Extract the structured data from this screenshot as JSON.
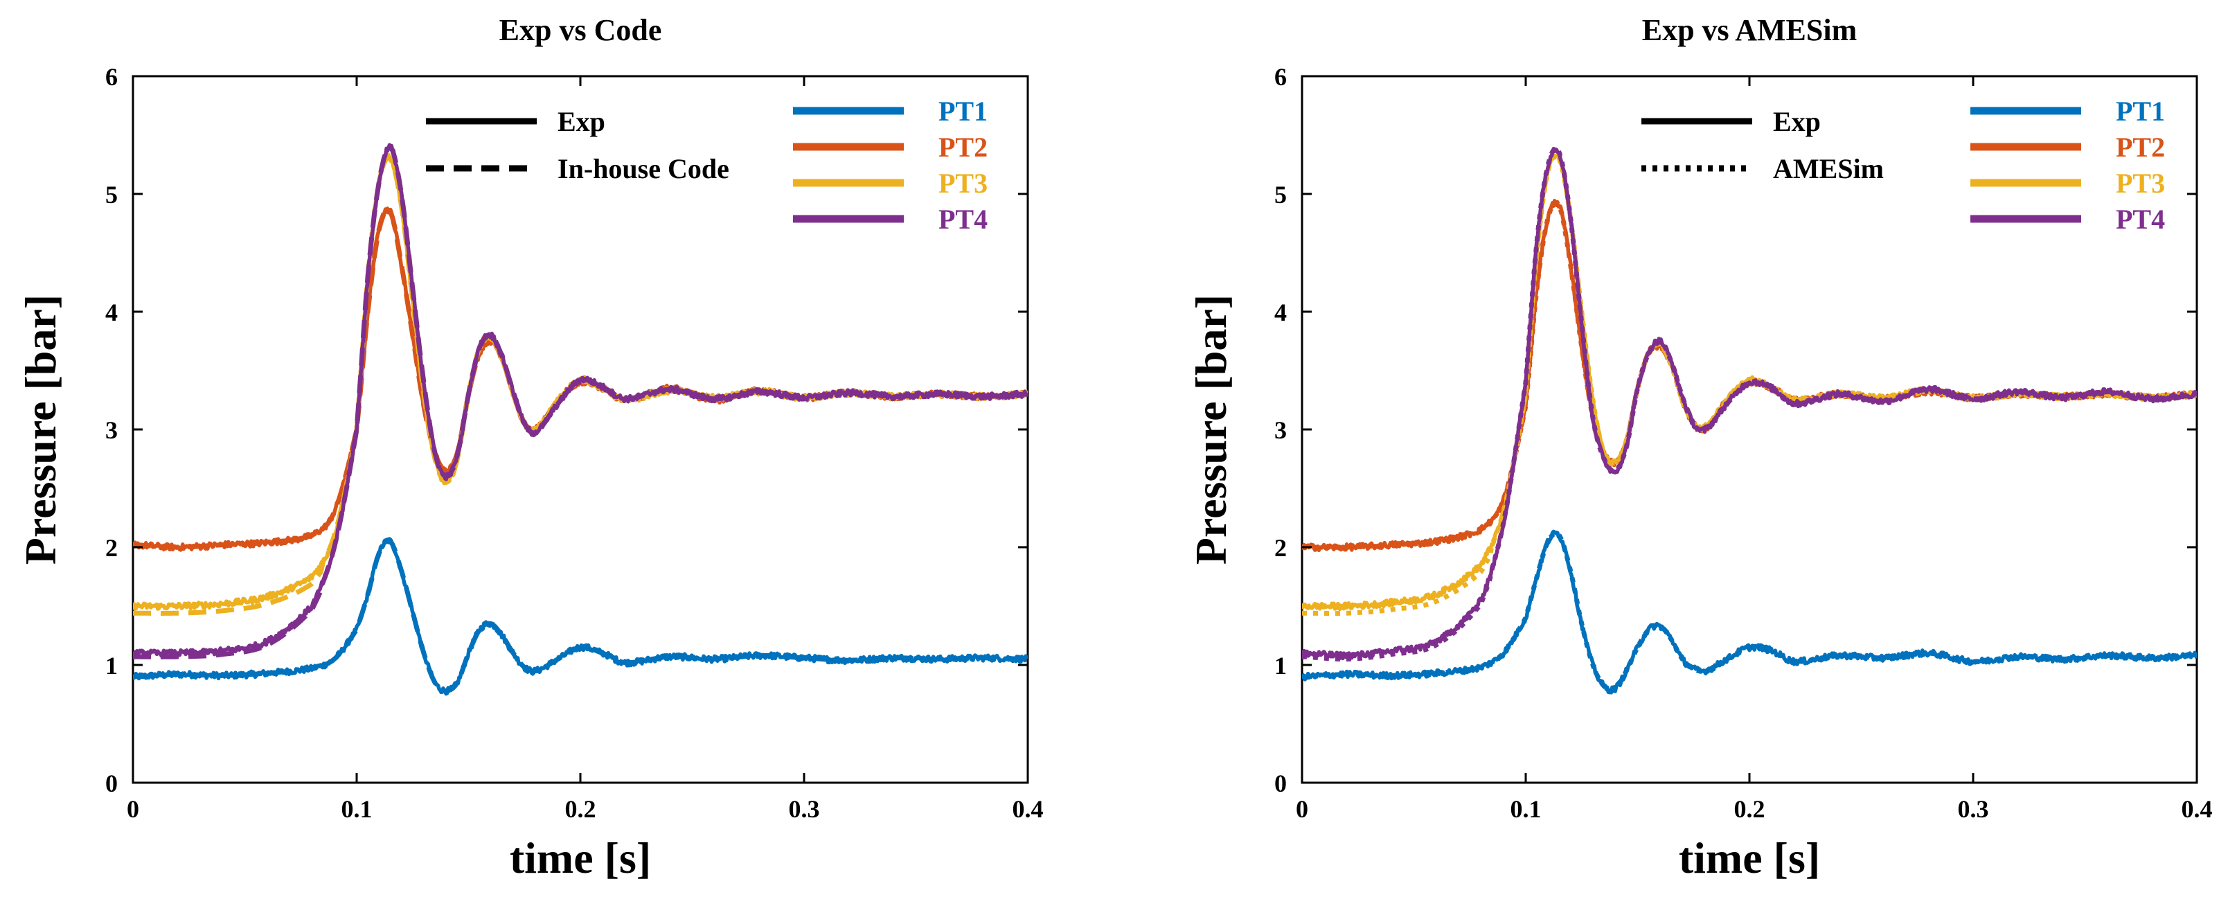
{
  "colors": {
    "PT1": "#0072BD",
    "PT2": "#D95319",
    "PT3": "#EDB120",
    "PT4": "#7E2F8E",
    "axis": "#000000"
  },
  "chart_data": [
    {
      "type": "line",
      "title": "Exp  vs  Code",
      "xlabel": "time [s]",
      "ylabel": "Pressure [bar]",
      "xlim": [
        0,
        0.4
      ],
      "ylim": [
        0,
        6
      ],
      "xticks": [
        "0",
        "0.1",
        "0.2",
        "0.3",
        "0.4"
      ],
      "yticks": [
        "0",
        "1",
        "2",
        "3",
        "4",
        "5",
        "6"
      ],
      "grid": false,
      "style_legend": [
        {
          "label": "Exp",
          "dash": "solid"
        },
        {
          "label": "In-house Code",
          "dash": "dashed"
        }
      ],
      "series": [
        {
          "name": "PT1",
          "x": [
            0,
            0.02,
            0.04,
            0.06,
            0.08,
            0.09,
            0.1,
            0.105,
            0.11,
            0.115,
            0.12,
            0.125,
            0.13,
            0.135,
            0.14,
            0.145,
            0.15,
            0.155,
            0.16,
            0.165,
            0.17,
            0.175,
            0.18,
            0.19,
            0.2,
            0.21,
            0.22,
            0.24,
            0.26,
            0.28,
            0.3,
            0.32,
            0.34,
            0.36,
            0.38,
            0.4
          ],
          "y": [
            0.9,
            0.92,
            0.91,
            0.93,
            0.97,
            1.05,
            1.3,
            1.6,
            1.95,
            2.05,
            1.8,
            1.45,
            1.1,
            0.85,
            0.78,
            0.85,
            1.1,
            1.3,
            1.35,
            1.25,
            1.1,
            0.98,
            0.95,
            1.05,
            1.15,
            1.1,
            1.02,
            1.07,
            1.05,
            1.08,
            1.06,
            1.04,
            1.06,
            1.05,
            1.06,
            1.05
          ]
        },
        {
          "name": "PT2",
          "x": [
            0,
            0.02,
            0.04,
            0.06,
            0.08,
            0.09,
            0.1,
            0.105,
            0.11,
            0.115,
            0.12,
            0.125,
            0.13,
            0.135,
            0.14,
            0.145,
            0.15,
            0.155,
            0.16,
            0.165,
            0.17,
            0.175,
            0.18,
            0.19,
            0.2,
            0.21,
            0.22,
            0.24,
            0.26,
            0.28,
            0.3,
            0.32,
            0.34,
            0.36,
            0.38,
            0.4
          ],
          "y": [
            2.02,
            2.0,
            2.02,
            2.04,
            2.1,
            2.3,
            3.0,
            4.0,
            4.7,
            4.85,
            4.4,
            3.8,
            3.2,
            2.8,
            2.65,
            2.8,
            3.3,
            3.65,
            3.75,
            3.6,
            3.3,
            3.05,
            3.0,
            3.25,
            3.4,
            3.35,
            3.25,
            3.35,
            3.25,
            3.33,
            3.27,
            3.31,
            3.28,
            3.3,
            3.28,
            3.3
          ]
        },
        {
          "name": "PT3",
          "x": [
            0,
            0.02,
            0.04,
            0.06,
            0.08,
            0.09,
            0.1,
            0.105,
            0.11,
            0.115,
            0.12,
            0.125,
            0.13,
            0.135,
            0.14,
            0.145,
            0.15,
            0.155,
            0.16,
            0.165,
            0.17,
            0.175,
            0.18,
            0.19,
            0.2,
            0.21,
            0.22,
            0.24,
            0.26,
            0.28,
            0.3,
            0.32,
            0.34,
            0.36,
            0.38,
            0.4
          ],
          "y": [
            1.5,
            1.5,
            1.52,
            1.58,
            1.75,
            2.1,
            3.0,
            4.3,
            5.1,
            5.3,
            4.9,
            4.1,
            3.3,
            2.75,
            2.55,
            2.75,
            3.3,
            3.7,
            3.78,
            3.6,
            3.3,
            3.05,
            3.0,
            3.25,
            3.42,
            3.35,
            3.25,
            3.33,
            3.27,
            3.32,
            3.27,
            3.31,
            3.28,
            3.3,
            3.28,
            3.3
          ]
        },
        {
          "name": "PT4",
          "x": [
            0,
            0.02,
            0.04,
            0.06,
            0.08,
            0.09,
            0.1,
            0.105,
            0.11,
            0.115,
            0.12,
            0.125,
            0.13,
            0.135,
            0.14,
            0.145,
            0.15,
            0.155,
            0.16,
            0.165,
            0.17,
            0.175,
            0.18,
            0.19,
            0.2,
            0.21,
            0.22,
            0.24,
            0.26,
            0.28,
            0.3,
            0.32,
            0.34,
            0.36,
            0.38,
            0.4
          ],
          "y": [
            1.1,
            1.1,
            1.12,
            1.2,
            1.5,
            2.0,
            3.0,
            4.3,
            5.1,
            5.4,
            5.0,
            4.2,
            3.4,
            2.8,
            2.6,
            2.78,
            3.3,
            3.7,
            3.8,
            3.62,
            3.32,
            3.05,
            2.98,
            3.22,
            3.42,
            3.36,
            3.26,
            3.34,
            3.26,
            3.32,
            3.27,
            3.31,
            3.28,
            3.3,
            3.28,
            3.3
          ]
        }
      ]
    },
    {
      "type": "line",
      "title": "Exp  vs  AMESim",
      "xlabel": "time [s]",
      "ylabel": "Pressure [bar]",
      "xlim": [
        0,
        0.4
      ],
      "ylim": [
        0,
        6
      ],
      "xticks": [
        "0",
        "0.1",
        "0.2",
        "0.3",
        "0.4"
      ],
      "yticks": [
        "0",
        "1",
        "2",
        "3",
        "4",
        "5",
        "6"
      ],
      "grid": false,
      "style_legend": [
        {
          "label": "Exp",
          "dash": "solid"
        },
        {
          "label": "AMESim",
          "dash": "dotted"
        }
      ],
      "series": [
        {
          "name": "PT1",
          "x": [
            0,
            0.02,
            0.04,
            0.06,
            0.08,
            0.09,
            0.1,
            0.105,
            0.11,
            0.115,
            0.12,
            0.125,
            0.13,
            0.135,
            0.14,
            0.145,
            0.15,
            0.155,
            0.16,
            0.165,
            0.17,
            0.175,
            0.18,
            0.19,
            0.2,
            0.21,
            0.22,
            0.24,
            0.26,
            0.28,
            0.3,
            0.32,
            0.34,
            0.36,
            0.38,
            0.4
          ],
          "y": [
            0.9,
            0.92,
            0.91,
            0.93,
            0.98,
            1.1,
            1.4,
            1.75,
            2.05,
            2.1,
            1.8,
            1.35,
            1.0,
            0.82,
            0.8,
            0.95,
            1.15,
            1.3,
            1.33,
            1.22,
            1.05,
            0.97,
            0.95,
            1.05,
            1.15,
            1.12,
            1.03,
            1.08,
            1.06,
            1.1,
            1.03,
            1.07,
            1.05,
            1.08,
            1.06,
            1.08
          ]
        },
        {
          "name": "PT2",
          "x": [
            0,
            0.02,
            0.04,
            0.06,
            0.08,
            0.09,
            0.1,
            0.105,
            0.11,
            0.115,
            0.12,
            0.125,
            0.13,
            0.135,
            0.14,
            0.145,
            0.15,
            0.155,
            0.16,
            0.165,
            0.17,
            0.175,
            0.18,
            0.19,
            0.2,
            0.21,
            0.22,
            0.24,
            0.26,
            0.28,
            0.3,
            0.32,
            0.34,
            0.36,
            0.38,
            0.4
          ],
          "y": [
            2.0,
            2.0,
            2.02,
            2.05,
            2.15,
            2.4,
            3.2,
            4.2,
            4.8,
            4.9,
            4.4,
            3.7,
            3.1,
            2.8,
            2.72,
            2.9,
            3.35,
            3.65,
            3.7,
            3.55,
            3.25,
            3.05,
            3.0,
            3.25,
            3.4,
            3.35,
            3.25,
            3.3,
            3.26,
            3.32,
            3.27,
            3.3,
            3.28,
            3.3,
            3.27,
            3.3
          ]
        },
        {
          "name": "PT3",
          "x": [
            0,
            0.02,
            0.04,
            0.06,
            0.08,
            0.09,
            0.1,
            0.105,
            0.11,
            0.115,
            0.12,
            0.125,
            0.13,
            0.135,
            0.14,
            0.145,
            0.15,
            0.155,
            0.16,
            0.165,
            0.17,
            0.175,
            0.18,
            0.19,
            0.2,
            0.21,
            0.22,
            0.24,
            0.26,
            0.28,
            0.3,
            0.32,
            0.34,
            0.36,
            0.38,
            0.4
          ],
          "y": [
            1.5,
            1.5,
            1.53,
            1.6,
            1.85,
            2.3,
            3.3,
            4.5,
            5.2,
            5.3,
            4.8,
            4.0,
            3.25,
            2.8,
            2.72,
            2.9,
            3.35,
            3.65,
            3.72,
            3.55,
            3.25,
            3.05,
            3.02,
            3.25,
            3.42,
            3.35,
            3.25,
            3.3,
            3.27,
            3.33,
            3.27,
            3.3,
            3.28,
            3.3,
            3.27,
            3.3
          ]
        },
        {
          "name": "PT4",
          "x": [
            0,
            0.02,
            0.04,
            0.06,
            0.08,
            0.09,
            0.1,
            0.105,
            0.11,
            0.115,
            0.12,
            0.125,
            0.13,
            0.135,
            0.14,
            0.145,
            0.15,
            0.155,
            0.16,
            0.165,
            0.17,
            0.175,
            0.18,
            0.19,
            0.2,
            0.21,
            0.22,
            0.24,
            0.26,
            0.28,
            0.3,
            0.32,
            0.34,
            0.36,
            0.38,
            0.4
          ],
          "y": [
            1.1,
            1.08,
            1.12,
            1.2,
            1.55,
            2.2,
            3.4,
            4.6,
            5.25,
            5.35,
            4.8,
            3.9,
            3.1,
            2.75,
            2.65,
            2.85,
            3.35,
            3.65,
            3.75,
            3.58,
            3.28,
            3.05,
            3.0,
            3.22,
            3.4,
            3.35,
            3.22,
            3.3,
            3.24,
            3.34,
            3.26,
            3.32,
            3.27,
            3.32,
            3.26,
            3.3
          ]
        }
      ]
    }
  ]
}
